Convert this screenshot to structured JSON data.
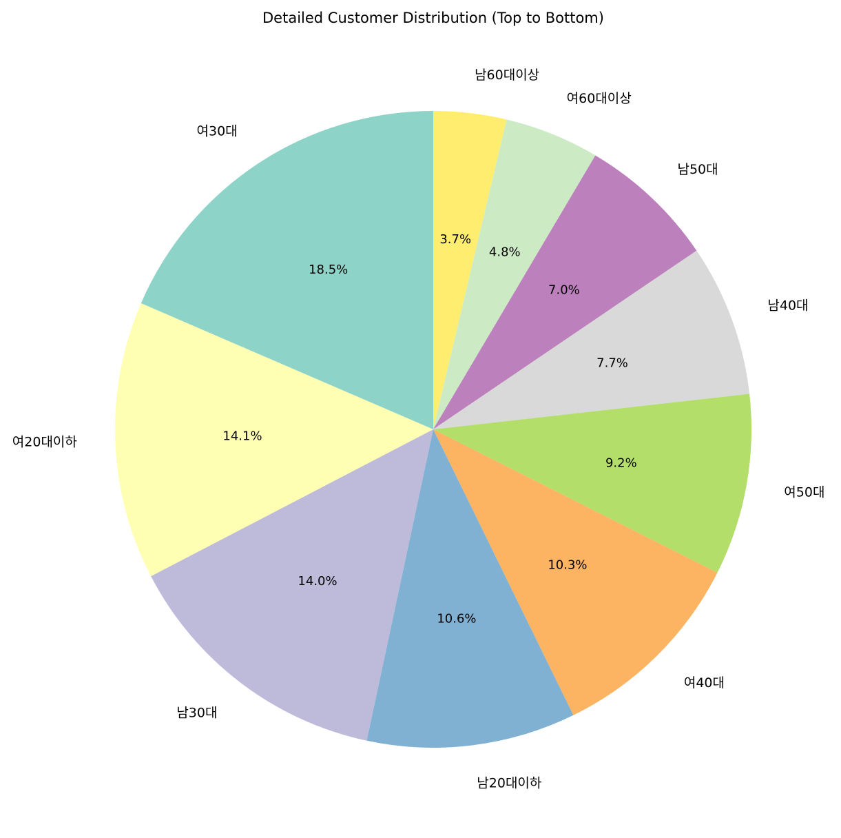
{
  "chart_data": {
    "type": "pie",
    "title": "Detailed Customer Distribution (Top to Bottom)",
    "start_angle": "top, clockwise",
    "slices": [
      {
        "label": "남60대이상",
        "value": 3.7,
        "pct_label": "3.7%",
        "color": "#ffed6f"
      },
      {
        "label": "여60대이상",
        "value": 4.8,
        "pct_label": "4.8%",
        "color": "#ccebc5"
      },
      {
        "label": "남50대",
        "value": 7.0,
        "pct_label": "7.0%",
        "color": "#bc80bd"
      },
      {
        "label": "남40대",
        "value": 7.7,
        "pct_label": "7.7%",
        "color": "#d9d9d9"
      },
      {
        "label": "여50대",
        "value": 9.2,
        "pct_label": "9.2%",
        "color": "#b3de69"
      },
      {
        "label": "여40대",
        "value": 10.3,
        "pct_label": "10.3%",
        "color": "#fdb462"
      },
      {
        "label": "남20대이하",
        "value": 10.6,
        "pct_label": "10.6%",
        "color": "#80b1d3"
      },
      {
        "label": "남30대",
        "value": 14.0,
        "pct_label": "14.0%",
        "color": "#bebada"
      },
      {
        "label": "여20대이하",
        "value": 14.1,
        "pct_label": "14.1%",
        "color": "#ffffb3"
      },
      {
        "label": "여30대",
        "value": 18.5,
        "pct_label": "18.5%",
        "color": "#8dd3c7"
      }
    ]
  }
}
